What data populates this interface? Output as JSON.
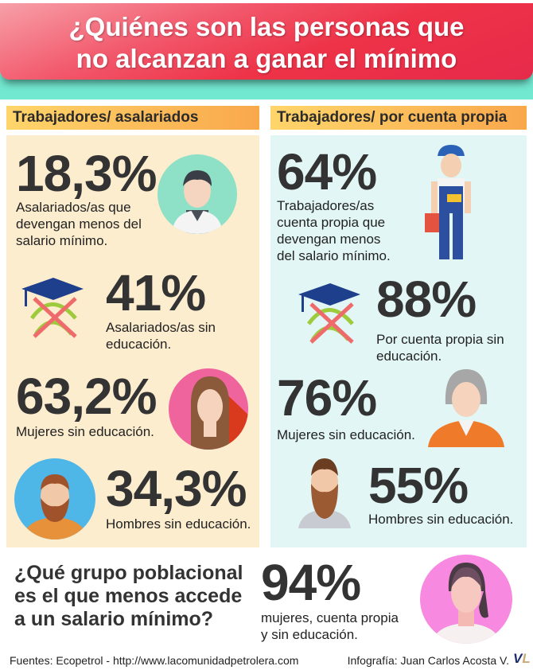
{
  "title_line1": "¿Quiénes son las personas que",
  "title_line2": "no alcanzan a ganar el mínimo",
  "left": {
    "header": "Trabajadores/ asalariados",
    "items": [
      {
        "value": "18,3%",
        "lines": [
          "Asalariados/as que",
          "devengan menos del",
          "salario mínimo."
        ]
      },
      {
        "value": "41%",
        "lines": [
          "Asalariados/as sin",
          "educación."
        ]
      },
      {
        "value": "63,2%",
        "lines": [
          "Mujeres sin educación."
        ]
      },
      {
        "value": "34,3%",
        "lines": [
          "Hombres sin educación."
        ]
      }
    ]
  },
  "right": {
    "header": "Trabajadores/ por cuenta propia",
    "items": [
      {
        "value": "64%",
        "lines": [
          "Trabajadores/as",
          "cuenta propia que",
          "devengan menos",
          "del salario mínimo."
        ]
      },
      {
        "value": "88%",
        "lines": [
          "Por cuenta propia sin",
          "educación."
        ]
      },
      {
        "value": "76%",
        "lines": [
          "Mujeres sin educación."
        ]
      },
      {
        "value": "55%",
        "lines": [
          "Hombres sin educación."
        ]
      }
    ]
  },
  "bottom": {
    "question": [
      "¿Qué grupo poblacional",
      "es el que menos accede",
      "a un salario mínimo?"
    ],
    "value": "94%",
    "lines": [
      "mujeres, cuenta propia",
      "y sin educación."
    ]
  },
  "footer": {
    "sources": "Fuentes: Ecopetrol   -  http://www.lacomunidadpetrolera.com",
    "credit": "Infografía: Juan Carlos Acosta V.",
    "logo": "VL"
  },
  "colors": {
    "banner": "#ee3348",
    "teal": "#72e8d0",
    "left_panel": "#fdedcf",
    "right_panel": "#e2f6f6",
    "header": "#f9a84c"
  }
}
